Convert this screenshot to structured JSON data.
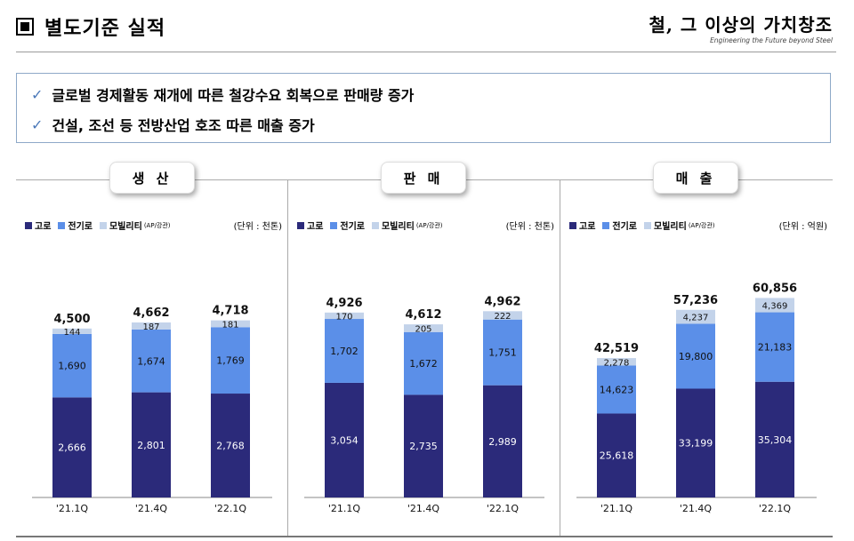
{
  "header": {
    "title": "별도기준 실적",
    "logo_text": "철, 그 이상의 가치창조",
    "logo_sub": "Engineering the Future beyond Steel"
  },
  "summary": {
    "items": [
      "글로벌 경제활동 재개에 따른 철강수요 회복으로 판매량 증가",
      "건설, 조선 등 전방산업 호조 따른 매출 증가"
    ],
    "check_symbol": "✓"
  },
  "legend": {
    "items": [
      {
        "label": "고로",
        "color": "#2b2a7a",
        "note": ""
      },
      {
        "label": "전기로",
        "color": "#5b8fe8",
        "note": ""
      },
      {
        "label": "모빌리티",
        "color": "#c3d3ea",
        "note": "(AP/강관)"
      }
    ]
  },
  "panels": [
    {
      "label": "생 산",
      "unit": "(단위 : 천톤)"
    },
    {
      "label": "판 매",
      "unit": "(단위 : 천톤)"
    },
    {
      "label": "매 출",
      "unit": "(단위 : 억원)"
    }
  ],
  "colors": {
    "blast": "#2b2a7a",
    "electric": "#5b8fe8",
    "mobility": "#c3d3ea"
  },
  "chart_data": [
    {
      "type": "bar",
      "stacked": true,
      "title": "생 산",
      "unit": "(단위 : 천톤)",
      "categories": [
        "'21.1Q",
        "'21.4Q",
        "'22.1Q"
      ],
      "series": [
        {
          "name": "고로",
          "values": [
            2666,
            2801,
            2768
          ],
          "labels": [
            "2,666",
            "2,801",
            "2,768"
          ]
        },
        {
          "name": "전기로",
          "values": [
            1690,
            1674,
            1769
          ],
          "labels": [
            "1,690",
            "1,674",
            "1,769"
          ]
        },
        {
          "name": "모빌리티",
          "values": [
            144,
            187,
            181
          ],
          "labels": [
            "144",
            "187",
            "181"
          ]
        }
      ],
      "totals": [
        "4,500",
        "4,662",
        "4,718"
      ],
      "ymax": 6200
    },
    {
      "type": "bar",
      "stacked": true,
      "title": "판 매",
      "unit": "(단위 : 천톤)",
      "categories": [
        "'21.1Q",
        "'21.4Q",
        "'22.1Q"
      ],
      "series": [
        {
          "name": "고로",
          "values": [
            3054,
            2735,
            2989
          ],
          "labels": [
            "3,054",
            "2,735",
            "2,989"
          ]
        },
        {
          "name": "전기로",
          "values": [
            1702,
            1672,
            1751
          ],
          "labels": [
            "1,702",
            "1,672",
            "1,751"
          ]
        },
        {
          "name": "모빌리티",
          "values": [
            170,
            205,
            222
          ],
          "labels": [
            "170",
            "205",
            "222"
          ]
        }
      ],
      "totals": [
        "4,926",
        "4,612",
        "4,962"
      ],
      "ymax": 6200
    },
    {
      "type": "bar",
      "stacked": true,
      "title": "매 출",
      "unit": "(단위 : 억원)",
      "categories": [
        "'21.1Q",
        "'21.4Q",
        "'22.1Q"
      ],
      "series": [
        {
          "name": "고로",
          "values": [
            25618,
            33199,
            35304
          ],
          "labels": [
            "25,618",
            "33,199",
            "35,304"
          ]
        },
        {
          "name": "전기로",
          "values": [
            14623,
            19800,
            21183
          ],
          "labels": [
            "14,623",
            "19,800",
            "21,183"
          ]
        },
        {
          "name": "모빌리티",
          "values": [
            2278,
            4237,
            4369
          ],
          "labels": [
            "2,278",
            "4,237",
            "4,369"
          ]
        }
      ],
      "totals": [
        "42,519",
        "57,236",
        "60,856"
      ],
      "ymax": 71000
    }
  ]
}
